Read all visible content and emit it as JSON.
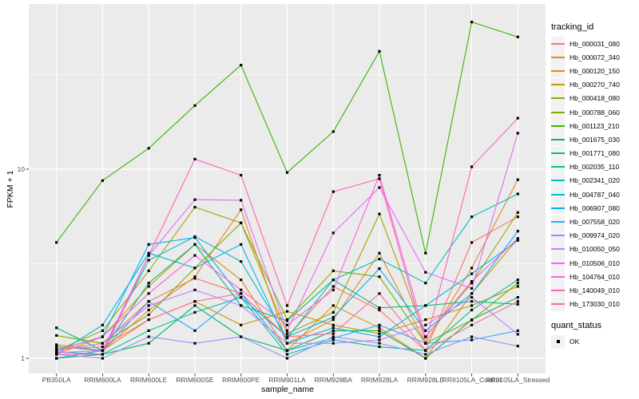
{
  "chart_data": {
    "type": "line",
    "title": "",
    "xlabel": "sample_name",
    "ylabel": "FPKM + 1",
    "y_scale": "log10",
    "ylim": [
      0.83,
      74
    ],
    "y_ticks": [
      {
        "value": 10,
        "label": "10"
      },
      {
        "value": 1,
        "label": "1"
      }
    ],
    "y_minor_ticks": [
      3.1623,
      31.623
    ],
    "grid": true,
    "legend_position": "right",
    "marker": "black-square",
    "categories": [
      "PB350LA",
      "RRIM600LA",
      "RRIM600LE",
      "RRIM600SE",
      "RRIM600PE",
      "RRIM901LA",
      "RRIM928BA",
      "RRIM928LA",
      "RRIM928LE",
      "RRII105LA_Control",
      "RRII105LA_Stressed"
    ],
    "series": [
      {
        "name": "Hb_000031_080",
        "color": "#F8766D",
        "values": [
          1.1,
          1.2,
          2.0,
          2.65,
          2.2,
          1.3,
          2.4,
          1.8,
          1.1,
          4.1,
          5.6
        ]
      },
      {
        "name": "Hb_000072_340",
        "color": "#E88526",
        "values": [
          1.0,
          1.1,
          1.8,
          2.7,
          6.1,
          1.2,
          1.6,
          3.6,
          1.2,
          3.0,
          8.8
        ]
      },
      {
        "name": "Hb_000120_150",
        "color": "#D89000",
        "values": [
          1.05,
          1.3,
          2.4,
          4.0,
          2.6,
          1.1,
          1.9,
          1.45,
          1.0,
          2.2,
          4.3
        ]
      },
      {
        "name": "Hb_000270_740",
        "color": "#C49A00",
        "values": [
          1.18,
          1.1,
          1.6,
          2.0,
          1.5,
          1.77,
          1.5,
          1.35,
          1.6,
          1.9,
          2.4
        ]
      },
      {
        "name": "Hb_000418_080",
        "color": "#A3A500",
        "values": [
          1.1,
          1.4,
          2.9,
          6.3,
          5.2,
          1.35,
          1.75,
          5.8,
          1.3,
          2.5,
          5.9
        ]
      },
      {
        "name": "Hb_000788_060",
        "color": "#7CAE00",
        "values": [
          1.32,
          1.2,
          1.7,
          3.0,
          5.2,
          1.6,
          2.9,
          2.7,
          1.2,
          1.59,
          2.5
        ]
      },
      {
        "name": "Hb_001123_210",
        "color": "#39B600",
        "values": [
          4.1,
          8.7,
          12.9,
          21.7,
          35.5,
          9.6,
          15.8,
          42.0,
          3.6,
          60.0,
          50.0
        ]
      },
      {
        "name": "Hb_001675_030",
        "color": "#00BB4E",
        "values": [
          1.0,
          1.05,
          1.2,
          1.9,
          1.3,
          1.1,
          1.4,
          1.4,
          1.0,
          1.6,
          2.1
        ]
      },
      {
        "name": "Hb_001771_080",
        "color": "#00BF7D",
        "values": [
          1.45,
          1.1,
          2.5,
          4.0,
          1.9,
          1.58,
          2.6,
          1.85,
          1.9,
          2.0,
          1.93
        ]
      },
      {
        "name": "Hb_002035_110",
        "color": "#00C1A3",
        "values": [
          1.08,
          1.05,
          1.4,
          1.75,
          2.1,
          1.05,
          1.25,
          1.15,
          1.1,
          1.8,
          2.6
        ]
      },
      {
        "name": "Hb_002341_020",
        "color": "#00BFC4",
        "values": [
          1.15,
          1.1,
          3.3,
          4.4,
          3.25,
          1.28,
          2.6,
          3.35,
          2.5,
          5.6,
          7.4
        ]
      },
      {
        "name": "Hb_004787_040",
        "color": "#00BAE0",
        "values": [
          1.05,
          1.5,
          3.6,
          3.0,
          4.0,
          1.2,
          1.45,
          1.3,
          1.9,
          2.8,
          4.2
        ]
      },
      {
        "name": "Hb_006907_080",
        "color": "#00B0F6",
        "values": [
          1.1,
          1.3,
          4.0,
          4.35,
          2.1,
          1.3,
          1.65,
          2.98,
          1.4,
          2.2,
          4.7
        ]
      },
      {
        "name": "Hb_007558_020",
        "color": "#35A2FF",
        "values": [
          1.0,
          1.1,
          2.0,
          1.4,
          2.2,
          1.1,
          1.28,
          1.5,
          1.2,
          1.25,
          1.4
        ]
      },
      {
        "name": "Hb_009974_020",
        "color": "#9590FF",
        "values": [
          1.05,
          1.0,
          1.3,
          1.2,
          1.3,
          1.0,
          1.3,
          1.2,
          1.05,
          1.3,
          1.16
        ]
      },
      {
        "name": "Hb_010050_050",
        "color": "#C77CFF",
        "values": [
          1.1,
          1.2,
          1.9,
          2.3,
          1.9,
          1.2,
          1.2,
          1.25,
          1.5,
          2.1,
          1.34
        ]
      },
      {
        "name": "Hb_010506_010",
        "color": "#E76BF3",
        "values": [
          1.07,
          1.1,
          3.5,
          6.9,
          6.85,
          1.4,
          4.6,
          8.0,
          2.85,
          2.34,
          15.5
        ]
      },
      {
        "name": "Hb_104764_010",
        "color": "#FA62DB",
        "values": [
          1.1,
          1.3,
          2.2,
          3.5,
          2.3,
          1.5,
          2.3,
          9.3,
          1.3,
          2.55,
          4.3
        ]
      },
      {
        "name": "Hb_140049_010",
        "color": "#FF62BC",
        "values": [
          1.05,
          1.05,
          3.5,
          11.3,
          9.3,
          1.9,
          7.6,
          8.9,
          1.2,
          10.3,
          18.6
        ]
      },
      {
        "name": "Hb_173030_010",
        "color": "#FF6A98",
        "values": [
          1.12,
          1.15,
          1.6,
          2.0,
          2.2,
          1.3,
          1.35,
          2.2,
          1.1,
          1.5,
          2.0
        ]
      }
    ],
    "legends": {
      "tracking": {
        "title": "tracking_id"
      },
      "quant": {
        "title": "quant_status",
        "items": [
          {
            "label": "OK",
            "icon": "black-square"
          }
        ]
      }
    },
    "style": {
      "panel_bg": "#EBEBEB",
      "grid_color": "#FFFFFF",
      "key_bg": "#F2F2F2",
      "tick_text_color": "#4D4D4D",
      "marker_color": "#000000"
    }
  }
}
